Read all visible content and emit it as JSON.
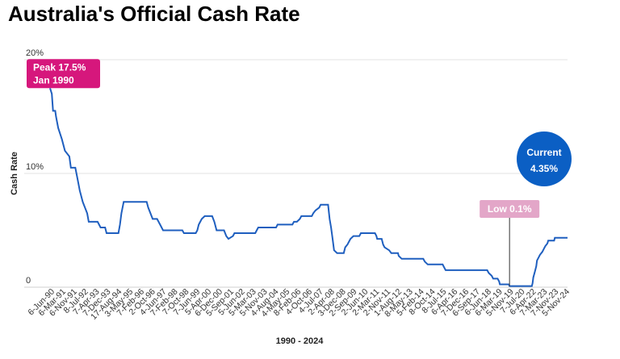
{
  "chart_data": {
    "type": "line",
    "title": "Australia's Official Cash Rate",
    "xlabel": "1990 - 2024",
    "ylabel": "Cash Rate",
    "ylim": [
      0,
      20
    ],
    "yticks": [
      {
        "value": 0,
        "label": "0"
      },
      {
        "value": 10,
        "label": "10%"
      },
      {
        "value": 20,
        "label": "20%"
      }
    ],
    "grid": true,
    "line_color": "#1f5fbf",
    "x_tick_labels": [
      "6-Jun-90",
      "6-Mar-91",
      "6-Nov-91",
      "8-Jul-92",
      "7-Apr-93",
      "7-Dec-93",
      "17-Aug-94",
      "3-May-95",
      "7-Feb-96",
      "2-Oct-96",
      "4-Jun-97",
      "7-Feb-98",
      "7-Oct-98",
      "7-Jun-99",
      "5-Apr-00",
      "6-Dec-00",
      "5-Sep-01",
      "5-Jun-02",
      "5-Mar-03",
      "5-Nov-03",
      "4-Aug-04",
      "4-May-05",
      "8-Feb-06",
      "4-Oct-06",
      "4-Jul-07",
      "2-Apr-08",
      "3-Dec-08",
      "2-Sep-09",
      "2-Jun-10",
      "2-Mar-11",
      "2-Nov-11",
      "1-Aug-12",
      "8-May-13",
      "5-Feb-14",
      "8-Oct-14",
      "8-Jul-15",
      "6-Apr-16",
      "7-Dec-16",
      "6-Sep-17",
      "6-Jun-18",
      "6-Mar-19",
      "5-Nov-19",
      "7-Jul-20",
      "6-Apr-22",
      "7-Mar-23",
      "7-Nov-23",
      "5-Nov-24"
    ],
    "x_range": [
      1990.0,
      2024.8
    ],
    "series": [
      {
        "values": [
          [
            1990.0,
            17.5
          ],
          [
            1990.12,
            17.0
          ],
          [
            1990.2,
            15.5
          ],
          [
            1990.35,
            15.5
          ],
          [
            1990.4,
            15.0
          ],
          [
            1990.55,
            14.0
          ],
          [
            1990.8,
            13.0
          ],
          [
            1991.0,
            12.0
          ],
          [
            1991.3,
            11.5
          ],
          [
            1991.4,
            10.5
          ],
          [
            1991.7,
            10.5
          ],
          [
            1991.85,
            9.5
          ],
          [
            1992.0,
            8.5
          ],
          [
            1992.2,
            7.5
          ],
          [
            1992.5,
            6.5
          ],
          [
            1992.6,
            5.75
          ],
          [
            1993.2,
            5.75
          ],
          [
            1993.4,
            5.25
          ],
          [
            1993.7,
            5.25
          ],
          [
            1993.8,
            4.75
          ],
          [
            1994.6,
            4.75
          ],
          [
            1994.7,
            5.5
          ],
          [
            1994.8,
            6.5
          ],
          [
            1994.95,
            7.5
          ],
          [
            1996.5,
            7.5
          ],
          [
            1996.6,
            7.0
          ],
          [
            1996.9,
            6.0
          ],
          [
            1997.2,
            6.0
          ],
          [
            1997.4,
            5.5
          ],
          [
            1997.6,
            5.0
          ],
          [
            1998.9,
            5.0
          ],
          [
            1999.0,
            4.75
          ],
          [
            1999.8,
            4.75
          ],
          [
            1999.9,
            5.0
          ],
          [
            2000.0,
            5.5
          ],
          [
            2000.2,
            6.0
          ],
          [
            2000.4,
            6.25
          ],
          [
            2000.9,
            6.25
          ],
          [
            2001.05,
            5.75
          ],
          [
            2001.2,
            5.0
          ],
          [
            2001.7,
            5.0
          ],
          [
            2001.85,
            4.5
          ],
          [
            2002.0,
            4.25
          ],
          [
            2002.3,
            4.5
          ],
          [
            2002.4,
            4.75
          ],
          [
            2003.8,
            4.75
          ],
          [
            2003.9,
            5.0
          ],
          [
            2004.0,
            5.25
          ],
          [
            2005.2,
            5.25
          ],
          [
            2005.3,
            5.5
          ],
          [
            2006.3,
            5.5
          ],
          [
            2006.4,
            5.75
          ],
          [
            2006.6,
            5.75
          ],
          [
            2006.8,
            6.0
          ],
          [
            2006.9,
            6.25
          ],
          [
            2007.6,
            6.25
          ],
          [
            2007.7,
            6.5
          ],
          [
            2007.85,
            6.75
          ],
          [
            2008.1,
            7.0
          ],
          [
            2008.2,
            7.25
          ],
          [
            2008.7,
            7.25
          ],
          [
            2008.8,
            6.0
          ],
          [
            2008.9,
            5.25
          ],
          [
            2009.0,
            4.25
          ],
          [
            2009.1,
            3.25
          ],
          [
            2009.3,
            3.0
          ],
          [
            2009.75,
            3.0
          ],
          [
            2009.85,
            3.5
          ],
          [
            2010.0,
            3.75
          ],
          [
            2010.2,
            4.25
          ],
          [
            2010.4,
            4.5
          ],
          [
            2010.8,
            4.5
          ],
          [
            2010.9,
            4.75
          ],
          [
            2011.85,
            4.75
          ],
          [
            2011.95,
            4.5
          ],
          [
            2012.0,
            4.25
          ],
          [
            2012.3,
            4.25
          ],
          [
            2012.4,
            3.75
          ],
          [
            2012.5,
            3.5
          ],
          [
            2012.8,
            3.25
          ],
          [
            2012.95,
            3.0
          ],
          [
            2013.4,
            3.0
          ],
          [
            2013.45,
            2.75
          ],
          [
            2013.65,
            2.5
          ],
          [
            2015.1,
            2.5
          ],
          [
            2015.2,
            2.25
          ],
          [
            2015.4,
            2.0
          ],
          [
            2016.4,
            2.0
          ],
          [
            2016.5,
            1.75
          ],
          [
            2016.6,
            1.5
          ],
          [
            2019.4,
            1.5
          ],
          [
            2019.5,
            1.25
          ],
          [
            2019.7,
            1.0
          ],
          [
            2019.8,
            0.75
          ],
          [
            2020.1,
            0.75
          ],
          [
            2020.2,
            0.5
          ],
          [
            2020.25,
            0.25
          ],
          [
            2020.85,
            0.25
          ],
          [
            2020.9,
            0.1
          ],
          [
            2022.4,
            0.1
          ],
          [
            2022.45,
            0.35
          ],
          [
            2022.5,
            0.85
          ],
          [
            2022.6,
            1.35
          ],
          [
            2022.7,
            1.85
          ],
          [
            2022.75,
            2.35
          ],
          [
            2022.85,
            2.6
          ],
          [
            2022.95,
            2.85
          ],
          [
            2023.1,
            3.1
          ],
          [
            2023.2,
            3.35
          ],
          [
            2023.3,
            3.6
          ],
          [
            2023.45,
            3.85
          ],
          [
            2023.5,
            4.1
          ],
          [
            2023.9,
            4.1
          ],
          [
            2023.95,
            4.35
          ],
          [
            2024.8,
            4.35
          ]
        ]
      }
    ],
    "annotations": {
      "peak": {
        "line1": "Peak 17.5%",
        "line2": "Jan 1990",
        "x": 1990.0,
        "y": 17.5,
        "color": "#d6177c"
      },
      "low": {
        "text": "Low 0.1%",
        "x": 2020.9,
        "y": 0.1,
        "color": "#e3a6c8"
      },
      "current": {
        "line1": "Current",
        "line2": "4.35%",
        "color": "#0b5fc4"
      }
    }
  }
}
